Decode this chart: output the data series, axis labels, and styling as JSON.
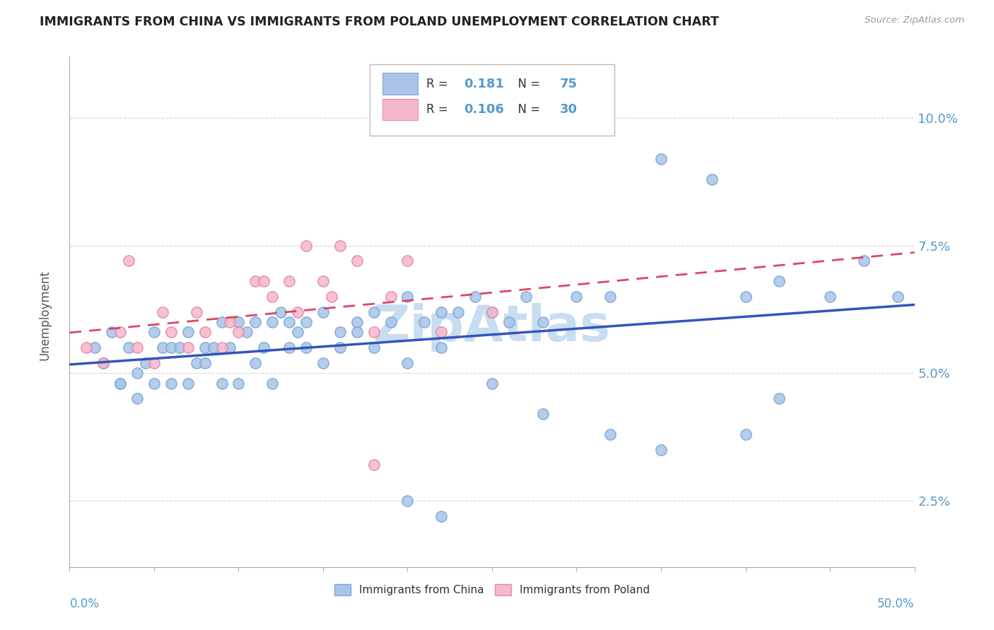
{
  "title": "IMMIGRANTS FROM CHINA VS IMMIGRANTS FROM POLAND UNEMPLOYMENT CORRELATION CHART",
  "source": "Source: ZipAtlas.com",
  "ylabel": "Unemployment",
  "yticks": [
    2.5,
    5.0,
    7.5,
    10.0
  ],
  "ytick_labels": [
    "2.5%",
    "5.0%",
    "7.5%",
    "10.0%"
  ],
  "xlim": [
    0,
    50
  ],
  "ylim": [
    1.2,
    11.2
  ],
  "legend_r_china": "0.181",
  "legend_n_china": "75",
  "legend_r_poland": "0.106",
  "legend_n_poland": "30",
  "china_color": "#aac4e8",
  "china_edge_color": "#7aaad8",
  "poland_color": "#f5b8cc",
  "poland_edge_color": "#e888aa",
  "china_line_color": "#3355bb",
  "poland_line_color": "#dd4466",
  "watermark_color": "#c8ddf0",
  "bg_color": "#ffffff",
  "grid_color": "#cccccc",
  "ytick_color": "#5599cc",
  "xtick_color": "#5599cc",
  "title_color": "#222222",
  "source_color": "#999999",
  "ylabel_color": "#555555",
  "china_x": [
    1.5,
    2.0,
    2.5,
    3.0,
    3.5,
    4.0,
    4.5,
    5.0,
    5.5,
    6.0,
    6.5,
    7.0,
    7.5,
    8.0,
    8.5,
    9.0,
    9.5,
    10.0,
    10.5,
    11.0,
    11.5,
    12.0,
    12.5,
    13.0,
    13.5,
    14.0,
    15.0,
    16.0,
    17.0,
    18.0,
    19.0,
    20.0,
    21.0,
    22.0,
    23.0,
    24.0,
    25.0,
    26.0,
    27.0,
    28.0,
    30.0,
    32.0,
    35.0,
    38.0,
    40.0,
    42.0,
    45.0,
    47.0,
    49.0,
    3.0,
    4.0,
    5.0,
    6.0,
    7.0,
    8.0,
    9.0,
    10.0,
    11.0,
    12.0,
    13.0,
    14.0,
    15.0,
    16.0,
    17.0,
    18.0,
    20.0,
    22.0,
    25.0,
    28.0,
    35.0,
    42.0,
    22.0,
    20.0,
    32.0,
    40.0
  ],
  "china_y": [
    5.5,
    5.2,
    5.8,
    4.8,
    5.5,
    5.0,
    5.2,
    5.8,
    5.5,
    5.5,
    5.5,
    5.8,
    5.2,
    5.5,
    5.5,
    6.0,
    5.5,
    6.0,
    5.8,
    6.0,
    5.5,
    6.0,
    6.2,
    6.0,
    5.8,
    6.0,
    6.2,
    5.8,
    6.0,
    6.2,
    6.0,
    6.5,
    6.0,
    6.2,
    6.2,
    6.5,
    6.2,
    6.0,
    6.5,
    6.0,
    6.5,
    6.5,
    9.2,
    8.8,
    6.5,
    6.8,
    6.5,
    7.2,
    6.5,
    4.8,
    4.5,
    4.8,
    4.8,
    4.8,
    5.2,
    4.8,
    4.8,
    5.2,
    4.8,
    5.5,
    5.5,
    5.2,
    5.5,
    5.8,
    5.5,
    5.2,
    5.5,
    4.8,
    4.2,
    3.5,
    4.5,
    2.2,
    2.5,
    3.8,
    3.8
  ],
  "poland_x": [
    1.0,
    2.0,
    3.0,
    4.0,
    5.0,
    6.0,
    7.0,
    8.0,
    9.0,
    10.0,
    11.0,
    12.0,
    13.0,
    14.0,
    15.0,
    16.0,
    17.0,
    18.0,
    19.0,
    20.0,
    3.5,
    5.5,
    7.5,
    9.5,
    11.5,
    13.5,
    15.5,
    22.0,
    25.0,
    18.0
  ],
  "poland_y": [
    5.5,
    5.2,
    5.8,
    5.5,
    5.2,
    5.8,
    5.5,
    5.8,
    5.5,
    5.8,
    6.8,
    6.5,
    6.8,
    7.5,
    6.8,
    7.5,
    7.2,
    5.8,
    6.5,
    7.2,
    7.2,
    6.2,
    6.2,
    6.0,
    6.8,
    6.2,
    6.5,
    5.8,
    6.2,
    3.2
  ]
}
